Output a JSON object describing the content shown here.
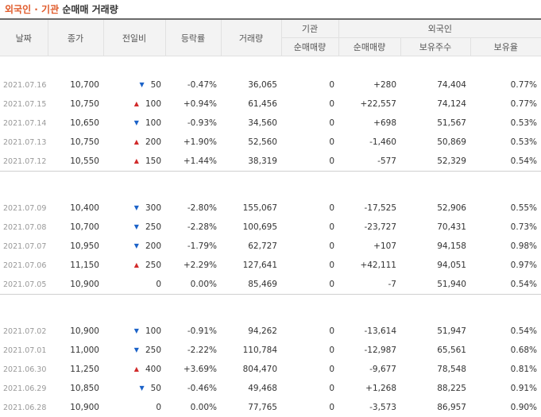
{
  "header": {
    "title_accent": "외국인 · 기관",
    "title_rest": "순매매 거래량"
  },
  "columns": {
    "date": "날짜",
    "close": "종가",
    "change": "전일비",
    "rate": "등락률",
    "volume": "거래량",
    "institution": "기관",
    "inst_net": "순매매량",
    "foreign": "외국인",
    "foreign_net": "순매매량",
    "holdings": "보유주수",
    "ratio": "보유율"
  },
  "colors": {
    "up": "#d12a2a",
    "down": "#1b62c8",
    "accent": "#e05a2a"
  },
  "groups": [
    [
      {
        "date": "2021.07.16",
        "close": "10,700",
        "dir": "down",
        "change": "50",
        "rate": "-0.47%",
        "volume": "36,065",
        "inst": "0",
        "foreign": "+280",
        "holdings": "74,404",
        "ratio": "0.77%"
      },
      {
        "date": "2021.07.15",
        "close": "10,750",
        "dir": "up",
        "change": "100",
        "rate": "+0.94%",
        "volume": "61,456",
        "inst": "0",
        "foreign": "+22,557",
        "holdings": "74,124",
        "ratio": "0.77%"
      },
      {
        "date": "2021.07.14",
        "close": "10,650",
        "dir": "down",
        "change": "100",
        "rate": "-0.93%",
        "volume": "34,560",
        "inst": "0",
        "foreign": "+698",
        "holdings": "51,567",
        "ratio": "0.53%"
      },
      {
        "date": "2021.07.13",
        "close": "10,750",
        "dir": "up",
        "change": "200",
        "rate": "+1.90%",
        "volume": "52,560",
        "inst": "0",
        "foreign": "-1,460",
        "holdings": "50,869",
        "ratio": "0.53%"
      },
      {
        "date": "2021.07.12",
        "close": "10,550",
        "dir": "up",
        "change": "150",
        "rate": "+1.44%",
        "volume": "38,319",
        "inst": "0",
        "foreign": "-577",
        "holdings": "52,329",
        "ratio": "0.54%"
      }
    ],
    [
      {
        "date": "2021.07.09",
        "close": "10,400",
        "dir": "down",
        "change": "300",
        "rate": "-2.80%",
        "volume": "155,067",
        "inst": "0",
        "foreign": "-17,525",
        "holdings": "52,906",
        "ratio": "0.55%"
      },
      {
        "date": "2021.07.08",
        "close": "10,700",
        "dir": "down",
        "change": "250",
        "rate": "-2.28%",
        "volume": "100,695",
        "inst": "0",
        "foreign": "-23,727",
        "holdings": "70,431",
        "ratio": "0.73%"
      },
      {
        "date": "2021.07.07",
        "close": "10,950",
        "dir": "down",
        "change": "200",
        "rate": "-1.79%",
        "volume": "62,727",
        "inst": "0",
        "foreign": "+107",
        "holdings": "94,158",
        "ratio": "0.98%"
      },
      {
        "date": "2021.07.06",
        "close": "11,150",
        "dir": "up",
        "change": "250",
        "rate": "+2.29%",
        "volume": "127,641",
        "inst": "0",
        "foreign": "+42,111",
        "holdings": "94,051",
        "ratio": "0.97%"
      },
      {
        "date": "2021.07.05",
        "close": "10,900",
        "dir": "flat",
        "change": "0",
        "rate": "0.00%",
        "volume": "85,469",
        "inst": "0",
        "foreign": "-7",
        "holdings": "51,940",
        "ratio": "0.54%"
      }
    ],
    [
      {
        "date": "2021.07.02",
        "close": "10,900",
        "dir": "down",
        "change": "100",
        "rate": "-0.91%",
        "volume": "94,262",
        "inst": "0",
        "foreign": "-13,614",
        "holdings": "51,947",
        "ratio": "0.54%"
      },
      {
        "date": "2021.07.01",
        "close": "11,000",
        "dir": "down",
        "change": "250",
        "rate": "-2.22%",
        "volume": "110,784",
        "inst": "0",
        "foreign": "-12,987",
        "holdings": "65,561",
        "ratio": "0.68%"
      },
      {
        "date": "2021.06.30",
        "close": "11,250",
        "dir": "up",
        "change": "400",
        "rate": "+3.69%",
        "volume": "804,470",
        "inst": "0",
        "foreign": "-9,677",
        "holdings": "78,548",
        "ratio": "0.81%"
      },
      {
        "date": "2021.06.29",
        "close": "10,850",
        "dir": "down",
        "change": "50",
        "rate": "-0.46%",
        "volume": "49,468",
        "inst": "0",
        "foreign": "+1,268",
        "holdings": "88,225",
        "ratio": "0.91%"
      },
      {
        "date": "2021.06.28",
        "close": "10,900",
        "dir": "flat",
        "change": "0",
        "rate": "0.00%",
        "volume": "77,765",
        "inst": "0",
        "foreign": "-3,573",
        "holdings": "86,957",
        "ratio": "0.90%"
      }
    ]
  ]
}
